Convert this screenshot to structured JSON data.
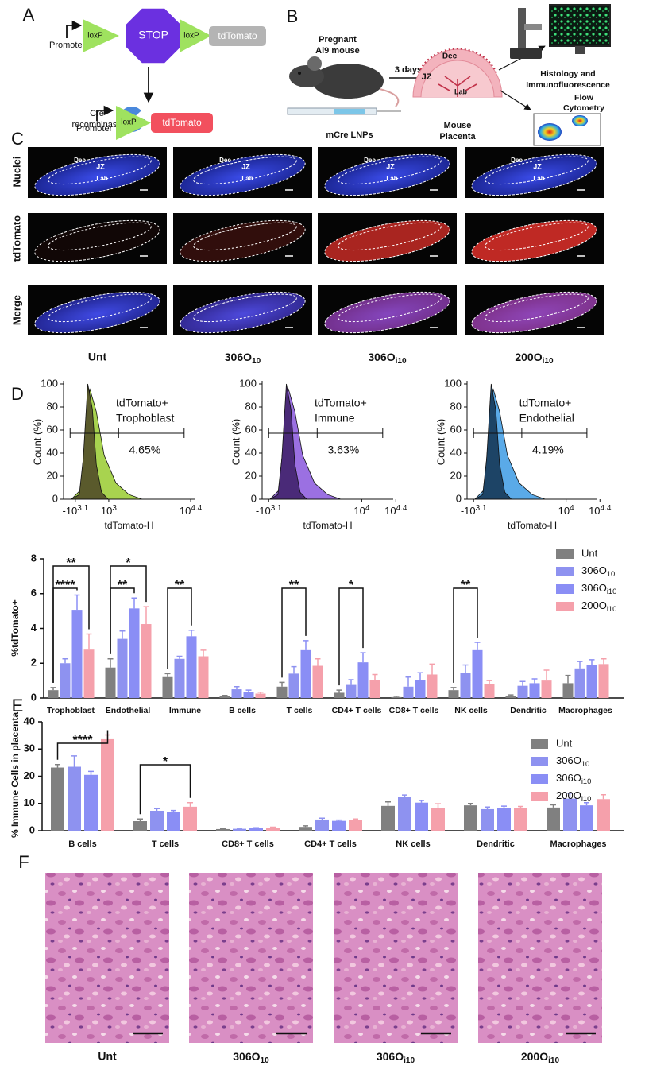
{
  "panel_labels": [
    "A",
    "B",
    "C",
    "D",
    "E",
    "F"
  ],
  "panel_a": {
    "construct_before": [
      "Promoter",
      "loxP",
      "STOP",
      "loxP",
      "tdTomato"
    ],
    "enzyme": [
      "Cre",
      "recombinase"
    ],
    "construct_after": [
      "Promoter",
      "loxP",
      "tdTomato"
    ]
  },
  "panel_b": {
    "mouse": [
      "Pregnant",
      "Ai9 mouse"
    ],
    "treatment": "mCre LNPs",
    "interval": "3 days",
    "placenta_regions": [
      "Dec",
      "JZ",
      "Lab"
    ],
    "placenta": [
      "Mouse",
      "Placenta"
    ],
    "histology": [
      "Histology and",
      "Immunofluorescence"
    ],
    "flow": [
      "Flow",
      "Cytometry"
    ]
  },
  "panel_c": {
    "rows": [
      "Nuclei",
      "tdTomato",
      "Merge"
    ],
    "columns": [
      "Unt",
      "306O10",
      "306Oi10",
      "200Oi10"
    ],
    "regions": [
      "Dec",
      "JZ",
      "Lab"
    ]
  },
  "panel_f": {
    "columns": [
      "Unt",
      "306O10",
      "306Oi10",
      "200Oi10"
    ]
  },
  "chart_data": [
    {
      "type": "flow-histogram",
      "gate_label": [
        "tdTomato+",
        "Trophoblast"
      ],
      "gate_percent": "4.65%",
      "ylabel": "Count (%)",
      "xlabel": "tdTomato-H",
      "ylim": [
        0,
        100
      ],
      "yticks": [
        0,
        20,
        40,
        60,
        80,
        100
      ],
      "xtick_labels": [
        {
          "base": "-10",
          "exp": "3.1"
        },
        {
          "base": "10",
          "exp": "3"
        },
        {
          "base": "10",
          "exp": "4.4"
        }
      ],
      "colors": [
        "#5a5a2c",
        "#a8d34f"
      ]
    },
    {
      "type": "flow-histogram",
      "gate_label": [
        "tdTomato+",
        "Immune"
      ],
      "gate_percent": "3.63%",
      "ylabel": "Count (%)",
      "xlabel": "tdTomato-H",
      "ylim": [
        0,
        100
      ],
      "yticks": [
        0,
        20,
        40,
        60,
        80,
        100
      ],
      "xtick_labels": [
        {
          "base": "-10",
          "exp": "3.1"
        },
        {
          "base": "10",
          "exp": "4"
        },
        {
          "base": "10",
          "exp": "4.4"
        }
      ],
      "colors": [
        "#4a2a78",
        "#9b70e2"
      ]
    },
    {
      "type": "flow-histogram",
      "gate_label": [
        "tdTomato+",
        "Endothelial"
      ],
      "gate_percent": "4.19%",
      "ylabel": "Count (%)",
      "xlabel": "tdTomato-H",
      "ylim": [
        0,
        100
      ],
      "yticks": [
        0,
        20,
        40,
        60,
        80,
        100
      ],
      "xtick_labels": [
        {
          "base": "-10",
          "exp": "3.1"
        },
        {
          "base": "10",
          "exp": "4"
        },
        {
          "base": "10",
          "exp": "4.4"
        }
      ],
      "colors": [
        "#1d4466",
        "#5aaae8"
      ]
    },
    {
      "type": "bar",
      "ylabel": "%tdTomato+",
      "ylim": [
        0,
        8
      ],
      "yticks": [
        0,
        2,
        4,
        6,
        8
      ],
      "categories": [
        "Trophoblast",
        "Endothelial",
        "Immune",
        "B cells",
        "T cells",
        "CD4+ T cells",
        "CD8+ T cells",
        "NK cells",
        "Dendritic",
        "Macrophages"
      ],
      "series": [
        {
          "name": "Unt",
          "color": "#808080",
          "values": [
            0.45,
            1.75,
            1.2,
            0.1,
            0.65,
            0.3,
            0.05,
            0.45,
            0.1,
            0.85
          ],
          "errors": [
            0.15,
            0.5,
            0.2,
            0.05,
            0.25,
            0.15,
            0.05,
            0.15,
            0.08,
            0.45
          ]
        },
        {
          "name": "306O10",
          "color": "#8e92f0",
          "values": [
            2.0,
            3.4,
            2.25,
            0.5,
            1.4,
            0.75,
            0.65,
            1.45,
            0.7,
            1.7
          ],
          "errors": [
            0.25,
            0.45,
            0.15,
            0.15,
            0.4,
            0.3,
            0.55,
            0.45,
            0.25,
            0.4
          ]
        },
        {
          "name": "306Oi10",
          "color": "#8a8ef5",
          "values": [
            5.07,
            5.15,
            3.55,
            0.35,
            2.75,
            2.05,
            1.05,
            2.75,
            0.85,
            1.9
          ],
          "errors": [
            0.85,
            0.6,
            0.35,
            0.1,
            0.55,
            0.55,
            0.4,
            0.45,
            0.25,
            0.3
          ]
        },
        {
          "name": "200Oi10",
          "color": "#f5a0ab",
          "values": [
            2.78,
            4.25,
            2.4,
            0.25,
            1.85,
            1.05,
            1.35,
            0.8,
            1.0,
            1.95
          ],
          "errors": [
            0.9,
            1.0,
            0.35,
            0.08,
            0.4,
            0.3,
            0.6,
            0.2,
            0.6,
            0.3
          ]
        }
      ],
      "annotations": [
        "**",
        "****",
        "*",
        "**",
        "**",
        "**",
        "*",
        "**"
      ]
    },
    {
      "type": "bar",
      "ylabel": "% Immune Cells in placenta",
      "ylim": [
        0,
        40
      ],
      "yticks": [
        0,
        10,
        20,
        30,
        40
      ],
      "categories": [
        "B cells",
        "T cells",
        "CD8+ T cells",
        "CD4+ T cells",
        "NK cells",
        "Dendritic",
        "Macrophages"
      ],
      "series": [
        {
          "name": "Unt",
          "color": "#808080",
          "values": [
            23.2,
            3.5,
            0.6,
            1.4,
            9.1,
            9.3,
            8.5
          ],
          "errors": [
            1.1,
            0.8,
            0.2,
            0.4,
            1.5,
            0.7,
            1.0
          ]
        },
        {
          "name": "306O10",
          "color": "#8e92f0",
          "values": [
            23.5,
            7.3,
            0.7,
            4.1,
            12.3,
            7.9,
            11.8
          ],
          "errors": [
            4.0,
            0.8,
            0.2,
            0.5,
            0.8,
            0.8,
            2.0
          ]
        },
        {
          "name": "306Oi10",
          "color": "#8a8ef5",
          "values": [
            20.5,
            6.8,
            0.9,
            3.6,
            10.3,
            8.2,
            9.3
          ],
          "errors": [
            1.3,
            0.6,
            0.2,
            0.3,
            0.8,
            0.8,
            1.0
          ]
        },
        {
          "name": "200Oi10",
          "color": "#f5a0ab",
          "values": [
            33.6,
            8.8,
            1.0,
            3.8,
            8.3,
            8.3,
            11.6
          ],
          "errors": [
            1.6,
            1.5,
            0.3,
            0.5,
            1.6,
            0.6,
            1.6
          ]
        }
      ],
      "annotations": [
        "****",
        "*"
      ]
    }
  ]
}
